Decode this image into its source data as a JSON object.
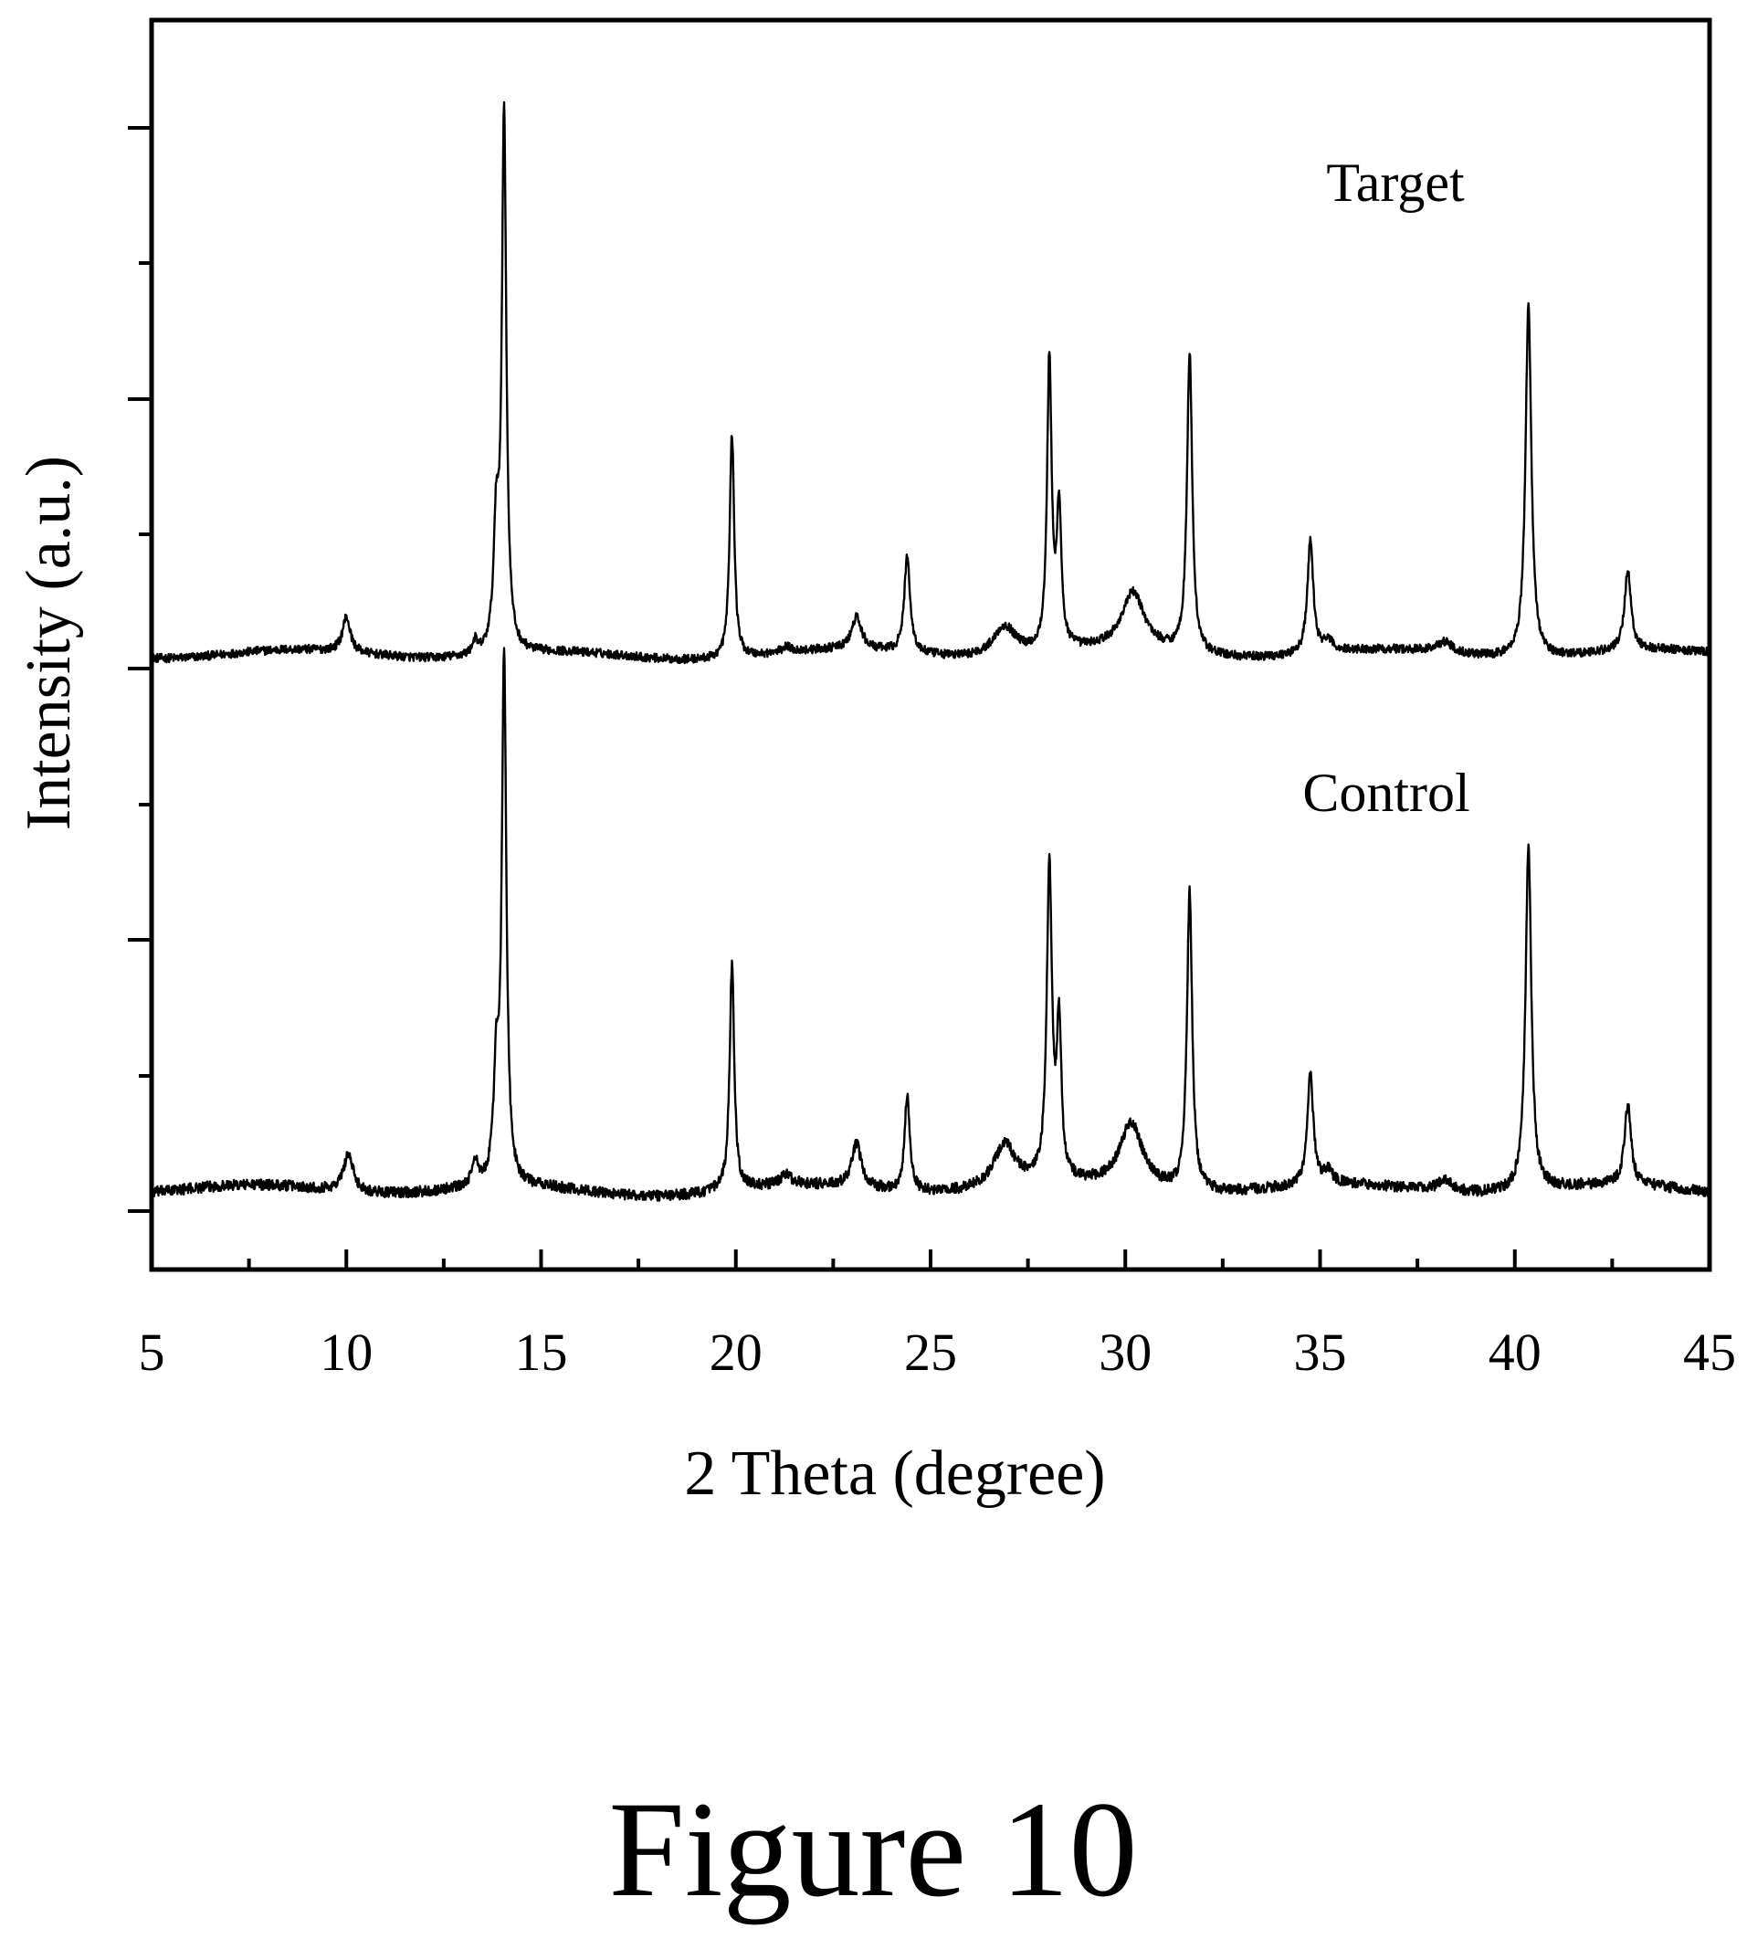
{
  "figure": {
    "caption": "Figure 10"
  },
  "chart_data": {
    "type": "line",
    "title": "",
    "xlabel": "2 Theta (degree)",
    "ylabel": "Intensity (a.u.)",
    "xlim": [
      5,
      45
    ],
    "ylim": [
      0,
      1
    ],
    "x_ticks": [
      "5",
      "10",
      "15",
      "20",
      "25",
      "30",
      "35",
      "40",
      "45"
    ],
    "y_tick_labels": "none",
    "grid": false,
    "legend": "none",
    "line_color": "#000000",
    "series": [
      {
        "name": "Target",
        "offset": 0.5,
        "baseline": 0.012,
        "noise": 0.004,
        "peaks": [
          {
            "x": 10.0,
            "h": 0.033,
            "w": 0.12
          },
          {
            "x": 13.3,
            "h": 0.012,
            "w": 0.07
          },
          {
            "x": 13.85,
            "h": 0.11,
            "w": 0.08
          },
          {
            "x": 14.05,
            "h": 0.5,
            "w": 0.07
          },
          {
            "x": 19.9,
            "h": 0.21,
            "w": 0.07
          },
          {
            "x": 21.3,
            "h": 0.005,
            "w": 0.15
          },
          {
            "x": 23.1,
            "h": 0.03,
            "w": 0.15
          },
          {
            "x": 24.4,
            "h": 0.09,
            "w": 0.09
          },
          {
            "x": 26.9,
            "h": 0.028,
            "w": 0.35
          },
          {
            "x": 28.05,
            "h": 0.27,
            "w": 0.07
          },
          {
            "x": 28.3,
            "h": 0.13,
            "w": 0.07
          },
          {
            "x": 30.2,
            "h": 0.053,
            "w": 0.35
          },
          {
            "x": 31.65,
            "h": 0.28,
            "w": 0.08
          },
          {
            "x": 34.75,
            "h": 0.105,
            "w": 0.09
          },
          {
            "x": 35.2,
            "h": 0.01,
            "w": 0.15
          },
          {
            "x": 38.2,
            "h": 0.01,
            "w": 0.25
          },
          {
            "x": 40.35,
            "h": 0.33,
            "w": 0.09
          },
          {
            "x": 42.9,
            "h": 0.075,
            "w": 0.1
          }
        ]
      },
      {
        "name": "Control",
        "offset": 0.0,
        "baseline": 0.012,
        "noise": 0.005,
        "peaks": [
          {
            "x": 10.05,
            "h": 0.035,
            "w": 0.15
          },
          {
            "x": 13.3,
            "h": 0.025,
            "w": 0.08
          },
          {
            "x": 13.85,
            "h": 0.1,
            "w": 0.08
          },
          {
            "x": 14.05,
            "h": 0.49,
            "w": 0.07
          },
          {
            "x": 19.9,
            "h": 0.21,
            "w": 0.07
          },
          {
            "x": 21.3,
            "h": 0.01,
            "w": 0.15
          },
          {
            "x": 23.1,
            "h": 0.04,
            "w": 0.15
          },
          {
            "x": 24.4,
            "h": 0.09,
            "w": 0.08
          },
          {
            "x": 26.9,
            "h": 0.04,
            "w": 0.35
          },
          {
            "x": 28.05,
            "h": 0.29,
            "w": 0.08
          },
          {
            "x": 28.3,
            "h": 0.14,
            "w": 0.07
          },
          {
            "x": 30.15,
            "h": 0.06,
            "w": 0.35
          },
          {
            "x": 31.65,
            "h": 0.28,
            "w": 0.08
          },
          {
            "x": 34.75,
            "h": 0.105,
            "w": 0.09
          },
          {
            "x": 35.2,
            "h": 0.012,
            "w": 0.15
          },
          {
            "x": 38.2,
            "h": 0.01,
            "w": 0.25
          },
          {
            "x": 40.35,
            "h": 0.32,
            "w": 0.09
          },
          {
            "x": 42.9,
            "h": 0.075,
            "w": 0.1
          }
        ]
      }
    ]
  }
}
